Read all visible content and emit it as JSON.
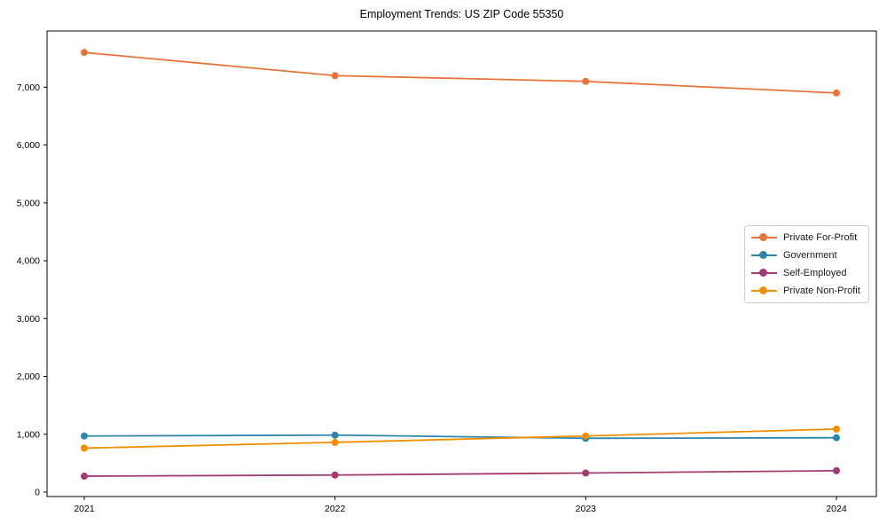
{
  "chart_data": {
    "type": "line",
    "title": "Employment Trends: US ZIP Code 55350",
    "xlabel": "",
    "ylabel": "",
    "categories": [
      "2021",
      "2022",
      "2023",
      "2024"
    ],
    "series": [
      {
        "name": "Private For-Profit",
        "color": "#E8743B",
        "values": [
          7600,
          7200,
          7100,
          6900
        ]
      },
      {
        "name": "Government",
        "color": "#2E86AB",
        "values": [
          970,
          985,
          930,
          940
        ]
      },
      {
        "name": "Self-Employed",
        "color": "#A23B72",
        "values": [
          275,
          295,
          330,
          370
        ]
      },
      {
        "name": "Private Non-Profit",
        "color": "#F18F01",
        "values": [
          760,
          860,
          970,
          1090
        ]
      }
    ],
    "y_ticks": [
      {
        "value": 0,
        "label": "0"
      },
      {
        "value": 1000,
        "label": "1,000"
      },
      {
        "value": 2000,
        "label": "2,000"
      },
      {
        "value": 3000,
        "label": "3,000"
      },
      {
        "value": 4000,
        "label": "4,000"
      },
      {
        "value": 5000,
        "label": "5,000"
      },
      {
        "value": 6000,
        "label": "6,000"
      },
      {
        "value": 7000,
        "label": "7,000"
      }
    ],
    "ylim": [
      0,
      8000
    ],
    "grid": false,
    "legend_position": "center-right",
    "marker": "circle",
    "axis_color": "#000000",
    "background": "#ffffff"
  }
}
